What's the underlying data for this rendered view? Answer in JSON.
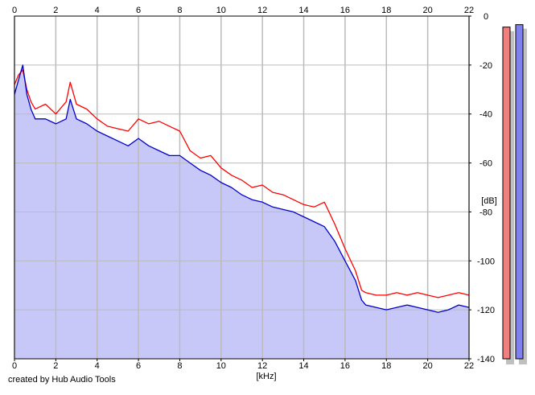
{
  "chart_data": {
    "type": "area",
    "title": "",
    "xlabel": "[kHz]",
    "ylabel": "[dB]",
    "xlim": [
      0,
      22
    ],
    "ylim": [
      -140,
      0
    ],
    "x_ticks": [
      "0",
      "2",
      "4",
      "6",
      "8",
      "10",
      "12",
      "14",
      "16",
      "18",
      "20",
      "22"
    ],
    "y_ticks": [
      "0",
      "-20",
      "-40",
      "-60",
      "-80",
      "-100",
      "-120",
      "-140"
    ],
    "grid": true,
    "series": [
      {
        "color": "#ff0000",
        "x": [
          0,
          0.2,
          0.4,
          0.6,
          0.8,
          1.0,
          1.5,
          2.0,
          2.5,
          2.7,
          3.0,
          3.5,
          4.0,
          4.5,
          5.0,
          5.5,
          6.0,
          6.5,
          7.0,
          7.5,
          8.0,
          8.5,
          9.0,
          9.5,
          10.0,
          10.5,
          11.0,
          11.5,
          12.0,
          12.5,
          13.0,
          13.5,
          14.0,
          14.5,
          15.0,
          15.5,
          16.0,
          16.5,
          16.8,
          17.0,
          17.5,
          18.0,
          18.5,
          19.0,
          19.5,
          20.0,
          20.5,
          21.0,
          21.5,
          22.0
        ],
        "y": [
          -28,
          -24,
          -22,
          -30,
          -35,
          -38,
          -36,
          -40,
          -35,
          -27,
          -36,
          -38,
          -42,
          -45,
          -46,
          -47,
          -42,
          -44,
          -43,
          -45,
          -47,
          -55,
          -58,
          -57,
          -62,
          -65,
          -67,
          -70,
          -69,
          -72,
          -73,
          -75,
          -77,
          -78,
          -76,
          -85,
          -95,
          -104,
          -112,
          -113,
          -114,
          -114,
          -113,
          -114,
          -113,
          -114,
          -115,
          -114,
          -113,
          -114
        ]
      },
      {
        "color": "#0000cc",
        "x": [
          0,
          0.2,
          0.4,
          0.6,
          0.8,
          1.0,
          1.5,
          2.0,
          2.5,
          2.7,
          3.0,
          3.5,
          4.0,
          4.5,
          5.0,
          5.5,
          6.0,
          6.5,
          7.0,
          7.5,
          8.0,
          8.5,
          9.0,
          9.5,
          10.0,
          10.5,
          11.0,
          11.5,
          12.0,
          12.5,
          13.0,
          13.5,
          14.0,
          14.5,
          15.0,
          15.5,
          16.0,
          16.5,
          16.8,
          17.0,
          17.5,
          18.0,
          18.5,
          19.0,
          19.5,
          20.0,
          20.5,
          21.0,
          21.5,
          22.0
        ],
        "y": [
          -32,
          -26,
          -20,
          -32,
          -38,
          -42,
          -42,
          -44,
          -42,
          -34,
          -42,
          -44,
          -47,
          -49,
          -51,
          -53,
          -50,
          -53,
          -55,
          -57,
          -57,
          -60,
          -63,
          -65,
          -68,
          -70,
          -73,
          -75,
          -76,
          -78,
          -79,
          -80,
          -82,
          -84,
          -86,
          -92,
          -100,
          -108,
          -116,
          -118,
          -119,
          -120,
          -119,
          -118,
          -119,
          -120,
          -121,
          -120,
          -118,
          -119
        ]
      }
    ],
    "level_meters": [
      {
        "color": "#f08080",
        "level_db": -4.5
      },
      {
        "color": "#8080ee",
        "level_db": -3.5
      }
    ]
  },
  "footer": {
    "credit": "created by Hub Audio Tools"
  },
  "colors": {
    "fill": "#c8c8f8",
    "grid": "#bbbbbb",
    "frame": "#000000",
    "meter_shadow": "#c0c0c0"
  }
}
